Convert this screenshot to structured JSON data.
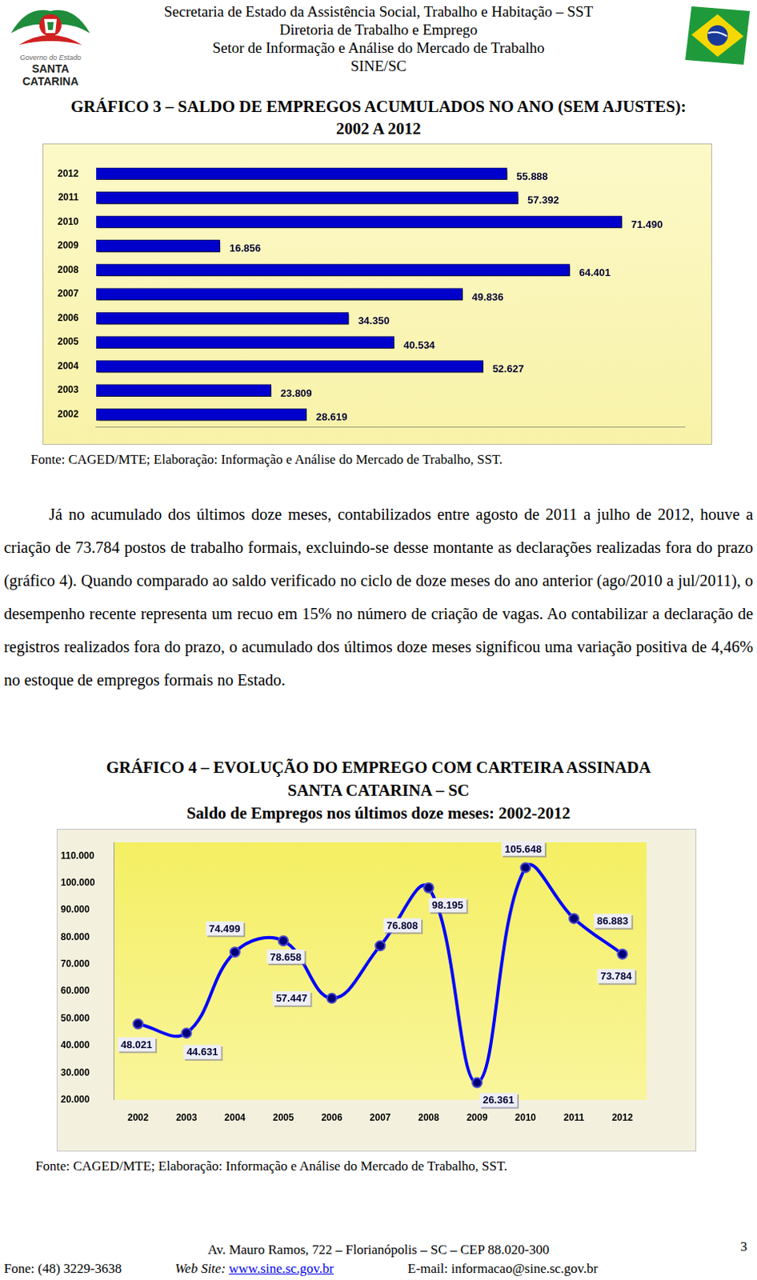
{
  "header": {
    "logo_texts": [
      "Governo do Estado",
      "SANTA CATARINA"
    ],
    "lines": [
      "Secretaria de Estado da Assistência Social, Trabalho e Habitação – SST",
      "Diretoria de Trabalho e Emprego",
      "Setor de Informação e Análise do Mercado de Trabalho",
      "SINE/SC"
    ]
  },
  "chart_data": [
    {
      "type": "bar",
      "orientation": "horizontal",
      "title": [
        "GRÁFICO 3 – SALDO DE EMPREGOS ACUMULADOS NO ANO (SEM AJUSTES):",
        "2002 A 2012"
      ],
      "categories": [
        "2012",
        "2011",
        "2010",
        "2009",
        "2008",
        "2007",
        "2006",
        "2005",
        "2004",
        "2003",
        "2002"
      ],
      "values": [
        55888,
        57392,
        71490,
        16856,
        64401,
        49836,
        34350,
        40534,
        52627,
        23809,
        28619
      ],
      "value_labels": [
        "55.888",
        "57.392",
        "71.490",
        "16.856",
        "64.401",
        "49.836",
        "34.350",
        "40.534",
        "52.627",
        "23.809",
        "28.619"
      ],
      "color": "#0000cc",
      "xlim": [
        0,
        80000
      ],
      "grid": false,
      "data_labels": true,
      "tick_labels": "y",
      "annotations": [
        "Fonte: CAGED/MTE; Elaboração: Informação e Análise do Mercado de Trabalho, SST."
      ]
    },
    {
      "type": "line",
      "title": [
        "GRÁFICO 4 – EVOLUÇÃO DO EMPREGO COM CARTEIRA ASSINADA",
        "SANTA CATARINA – SC"
      ],
      "subtitle": "Saldo de Empregos nos últimos doze meses: 2002-2012",
      "categories": [
        "2002",
        "2003",
        "2004",
        "2005",
        "2006",
        "2007",
        "2008",
        "2009",
        "2010",
        "2011",
        "2012"
      ],
      "values": [
        48021,
        44631,
        74499,
        78658,
        57447,
        76808,
        98195,
        26361,
        105648,
        86883,
        73784
      ],
      "value_labels": [
        "48.021",
        "44.631",
        "74.499",
        "78.658",
        "57.447",
        "76.808",
        "98.195",
        "26.361",
        "105.648",
        "86.883",
        "73.784"
      ],
      "color": "#0000ff",
      "marker": "circle",
      "ylim": [
        20000,
        115000
      ],
      "yticks": [
        {
          "value": 20000,
          "label": "20.000"
        },
        {
          "value": 30000,
          "label": "30.000"
        },
        {
          "value": 40000,
          "label": "40.000"
        },
        {
          "value": 50000,
          "label": "50.000"
        },
        {
          "value": 60000,
          "label": "60.000"
        },
        {
          "value": 70000,
          "label": "70.000"
        },
        {
          "value": 80000,
          "label": "80.000"
        },
        {
          "value": 90000,
          "label": "90.000"
        },
        {
          "value": 100000,
          "label": "100.000"
        },
        {
          "value": 110000,
          "label": "110.000"
        }
      ],
      "grid": false,
      "data_labels": true,
      "annotations": [
        "Fonte: CAGED/MTE; Elaboração: Informação e Análise do Mercado de Trabalho, SST."
      ]
    }
  ],
  "paragraph": "Já no acumulado dos últimos doze meses, contabilizados entre agosto de 2011 a julho de 2012, houve a criação de 73.784 postos de trabalho formais, excluindo-se desse montante as declarações realizadas fora do prazo (gráfico 4). Quando comparado ao saldo verificado no ciclo de doze meses do ano anterior (ago/2010 a jul/2011), o desempenho recente representa um recuo em 15% no número de criação de vagas. Ao contabilizar a declaração de registros realizados fora do prazo, o acumulado dos últimos doze meses significou uma variação positiva de 4,46% no estoque de empregos formais no Estado.",
  "footer": {
    "address": "Av. Mauro Ramos, 722 – Florianópolis – SC – CEP 88.020-300",
    "page": "3",
    "phone": "Fone: (48) 3229-3638",
    "website": {
      "label": "Web Site:",
      "value": "www.sine.sc.gov.br"
    },
    "email": {
      "label": "E-mail:",
      "value": "informacao@sine.sc.gov.br"
    }
  }
}
